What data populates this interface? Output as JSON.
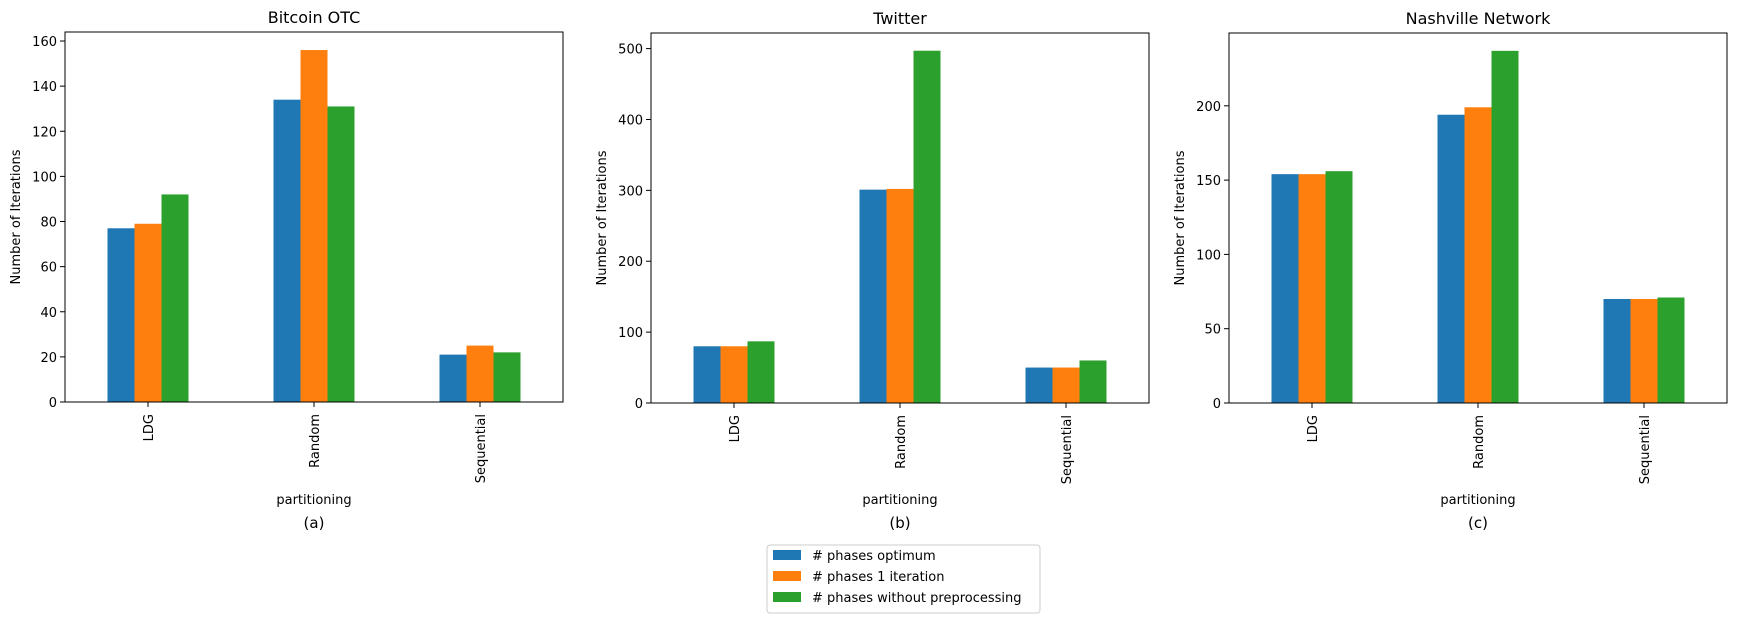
{
  "colors": {
    "# phases optimum": "#1f77b4",
    "# phases 1 iteration": "#ff7f0e",
    "# phases without preprocessing": "#2ca02c"
  },
  "legend": {
    "placement": "bottom-center",
    "entries": [
      "# phases optimum",
      "# phases 1 iteration",
      "# phases without preprocessing"
    ]
  },
  "chart_data": [
    {
      "type": "bar",
      "title": "Bitcoin OTC",
      "caption": "(a)",
      "xlabel": "partitioning",
      "ylabel": "Number of Iterations",
      "categories": [
        "LDG",
        "Random",
        "Sequential"
      ],
      "ylim": [
        0,
        164
      ],
      "yticks": [
        0,
        20,
        40,
        60,
        80,
        100,
        120,
        140,
        160
      ],
      "series": [
        {
          "name": "# phases optimum",
          "values": [
            77,
            134,
            21
          ]
        },
        {
          "name": "# phases 1 iteration",
          "values": [
            79,
            156,
            25
          ]
        },
        {
          "name": "# phases without preprocessing",
          "values": [
            92,
            131,
            22
          ]
        }
      ]
    },
    {
      "type": "bar",
      "title": "Twitter",
      "caption": "(b)",
      "xlabel": "partitioning",
      "ylabel": "Number of Iterations",
      "categories": [
        "LDG",
        "Random",
        "Sequential"
      ],
      "ylim": [
        0,
        522
      ],
      "yticks": [
        0,
        100,
        200,
        300,
        400,
        500
      ],
      "series": [
        {
          "name": "# phases optimum",
          "values": [
            80,
            301,
            50
          ]
        },
        {
          "name": "# phases 1 iteration",
          "values": [
            80,
            302,
            50
          ]
        },
        {
          "name": "# phases without preprocessing",
          "values": [
            87,
            497,
            60
          ]
        }
      ]
    },
    {
      "type": "bar",
      "title": "Nashville Network",
      "caption": "(c)",
      "xlabel": "partitioning",
      "ylabel": "Number of Iterations",
      "categories": [
        "LDG",
        "Random",
        "Sequential"
      ],
      "ylim": [
        0,
        249
      ],
      "yticks": [
        0,
        50,
        100,
        150,
        200
      ],
      "series": [
        {
          "name": "# phases optimum",
          "values": [
            154,
            194,
            70
          ]
        },
        {
          "name": "# phases 1 iteration",
          "values": [
            154,
            199,
            70
          ]
        },
        {
          "name": "# phases without preprocessing",
          "values": [
            156,
            237,
            71
          ]
        }
      ]
    }
  ]
}
